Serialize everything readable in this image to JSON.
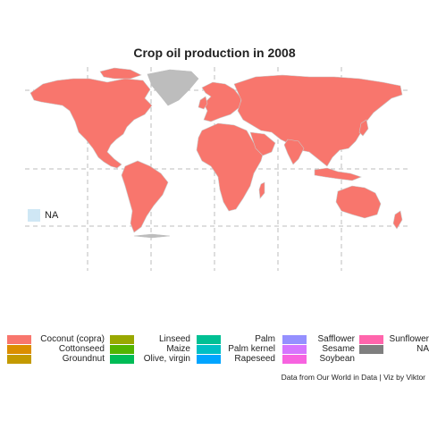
{
  "title": "Crop oil production in 2008",
  "na_label": "NA",
  "legend": [
    {
      "label": "Coconut (copra)",
      "color": "#f8766d"
    },
    {
      "label": "Cottonseed",
      "color": "#db8e00"
    },
    {
      "label": "Groundnut",
      "color": "#c49a00"
    },
    {
      "label": "Linseed",
      "color": "#99a800"
    },
    {
      "label": "Maize",
      "color": "#53b400"
    },
    {
      "label": "Olive, virgin",
      "color": "#00bc56"
    },
    {
      "label": "Palm",
      "color": "#00c094"
    },
    {
      "label": "Palm kernel",
      "color": "#00bfc4"
    },
    {
      "label": "Rapeseed",
      "color": "#00a5ff"
    },
    {
      "label": "Safflower",
      "color": "#9590ff"
    },
    {
      "label": "Sesame",
      "color": "#d575fe"
    },
    {
      "label": "Soybean",
      "color": "#f763e0"
    },
    {
      "label": "Sunflower",
      "color": "#ff65ac"
    },
    {
      "label": "NA",
      "color": "#7f7f7f"
    }
  ],
  "colors": {
    "na_inset": "#cfe7f5",
    "land_fill": "#f8766d",
    "land_na": "#bdbdbd"
  },
  "caption": "Data from Our World in Data  | Viz by Viktor"
}
